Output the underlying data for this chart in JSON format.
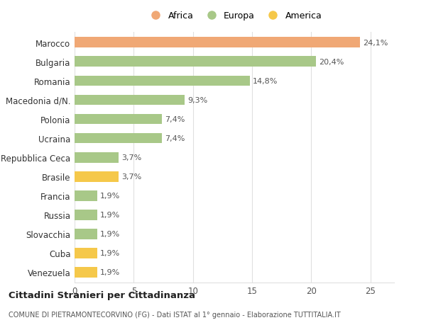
{
  "categories": [
    "Venezuela",
    "Cuba",
    "Slovacchia",
    "Russia",
    "Francia",
    "Brasile",
    "Repubblica Ceca",
    "Ucraina",
    "Polonia",
    "Macedonia d/N.",
    "Romania",
    "Bulgaria",
    "Marocco"
  ],
  "values": [
    1.9,
    1.9,
    1.9,
    1.9,
    1.9,
    3.7,
    3.7,
    7.4,
    7.4,
    9.3,
    14.8,
    20.4,
    24.1
  ],
  "labels": [
    "1,9%",
    "1,9%",
    "1,9%",
    "1,9%",
    "1,9%",
    "3,7%",
    "3,7%",
    "7,4%",
    "7,4%",
    "9,3%",
    "14,8%",
    "20,4%",
    "24,1%"
  ],
  "colors": [
    "#f5c84a",
    "#f5c84a",
    "#a8c888",
    "#a8c888",
    "#a8c888",
    "#f5c84a",
    "#a8c888",
    "#a8c888",
    "#a8c888",
    "#a8c888",
    "#a8c888",
    "#a8c888",
    "#f0a875"
  ],
  "legend": [
    {
      "label": "Africa",
      "color": "#f0a875"
    },
    {
      "label": "Europa",
      "color": "#a8c888"
    },
    {
      "label": "America",
      "color": "#f5c84a"
    }
  ],
  "xlim": [
    0,
    27
  ],
  "xticks": [
    0,
    5,
    10,
    15,
    20,
    25
  ],
  "title1": "Cittadini Stranieri per Cittadinanza",
  "title2": "COMUNE DI PIETRAMONTECORVINO (FG) - Dati ISTAT al 1° gennaio - Elaborazione TUTTITALIA.IT",
  "background_color": "#ffffff",
  "grid_color": "#e0e0e0",
  "bar_height": 0.55
}
